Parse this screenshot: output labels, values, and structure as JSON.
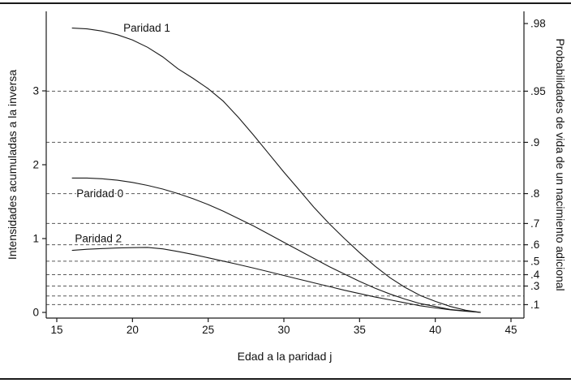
{
  "figure": {
    "background": "#ffffff",
    "line_color": "#1a1a1a",
    "grid_color": "#5a5a5a",
    "text_color": "#111111"
  },
  "chart_data": {
    "type": "line",
    "title": "",
    "xlabel": "Edad a la paridad j",
    "ylabel_left": "Intensidades acumuladas a la inversa",
    "ylabel_right": "Probabilidades de vida de un nacimiento adicional",
    "xlim": [
      14.3,
      45.9
    ],
    "ylim_left": [
      -0.08,
      4.06
    ],
    "x_ticks": [
      15,
      20,
      25,
      30,
      35,
      40,
      45
    ],
    "y_ticks_left": [
      0,
      1,
      2,
      3
    ],
    "right_axis_ticks": [
      {
        "label": ".1",
        "value": 0.105
      },
      {
        "label": ".3",
        "value": 0.357
      },
      {
        "label": ".4",
        "value": 0.511
      },
      {
        "label": ".5",
        "value": 0.693
      },
      {
        "label": ".6",
        "value": 0.916
      },
      {
        "label": ".7",
        "value": 1.204
      },
      {
        "label": ".8",
        "value": 1.609
      },
      {
        "label": ".9",
        "value": 2.303
      },
      {
        "label": ".95",
        "value": 2.996
      },
      {
        "label": ".98",
        "value": 3.912
      }
    ],
    "gridlines": [
      0.105,
      0.223,
      0.357,
      0.511,
      0.693,
      0.916,
      1.204,
      1.609,
      2.303,
      2.996
    ],
    "grid": "dashed-horizontal",
    "legend": "inline-curve-labels",
    "series": [
      {
        "name": "Paridad 1",
        "x": [
          16,
          17,
          18,
          19,
          20,
          21,
          22,
          23,
          24,
          25,
          26,
          27,
          28,
          29,
          30,
          31,
          32,
          33,
          34,
          35,
          36,
          37,
          38,
          39,
          40,
          41,
          42,
          43
        ],
        "y": [
          3.85,
          3.84,
          3.81,
          3.76,
          3.69,
          3.59,
          3.46,
          3.3,
          3.17,
          3.03,
          2.86,
          2.64,
          2.4,
          2.15,
          1.9,
          1.66,
          1.42,
          1.2,
          1.0,
          0.81,
          0.63,
          0.47,
          0.34,
          0.23,
          0.15,
          0.08,
          0.03,
          0.0
        ]
      },
      {
        "name": "Paridad 0",
        "x": [
          16,
          17,
          18,
          19,
          20,
          21,
          22,
          23,
          24,
          25,
          26,
          27,
          28,
          29,
          30,
          31,
          32,
          33,
          34,
          35,
          36,
          37,
          38,
          39,
          40,
          41,
          42,
          43
        ],
        "y": [
          1.82,
          1.82,
          1.81,
          1.79,
          1.76,
          1.72,
          1.67,
          1.61,
          1.54,
          1.46,
          1.37,
          1.27,
          1.17,
          1.06,
          0.95,
          0.84,
          0.73,
          0.62,
          0.52,
          0.42,
          0.33,
          0.25,
          0.18,
          0.12,
          0.08,
          0.04,
          0.02,
          0.0
        ]
      },
      {
        "name": "Paridad 2",
        "x": [
          16,
          17,
          18,
          19,
          20,
          21,
          22,
          23,
          24,
          25,
          26,
          27,
          28,
          29,
          30,
          31,
          32,
          33,
          34,
          35,
          36,
          37,
          38,
          39,
          40,
          41,
          42,
          43
        ],
        "y": [
          0.84,
          0.855,
          0.865,
          0.872,
          0.877,
          0.88,
          0.86,
          0.825,
          0.785,
          0.74,
          0.695,
          0.648,
          0.6,
          0.55,
          0.5,
          0.45,
          0.4,
          0.35,
          0.3,
          0.255,
          0.21,
          0.17,
          0.13,
          0.09,
          0.06,
          0.035,
          0.015,
          0.0
        ]
      }
    ],
    "annotations": [
      {
        "text": "Paridad 1",
        "x": 19.4,
        "y": 3.8
      },
      {
        "text": "Paridad 0",
        "x": 16.3,
        "y": 1.56
      },
      {
        "text": "Paridad 2",
        "x": 16.2,
        "y": 0.95
      }
    ]
  }
}
